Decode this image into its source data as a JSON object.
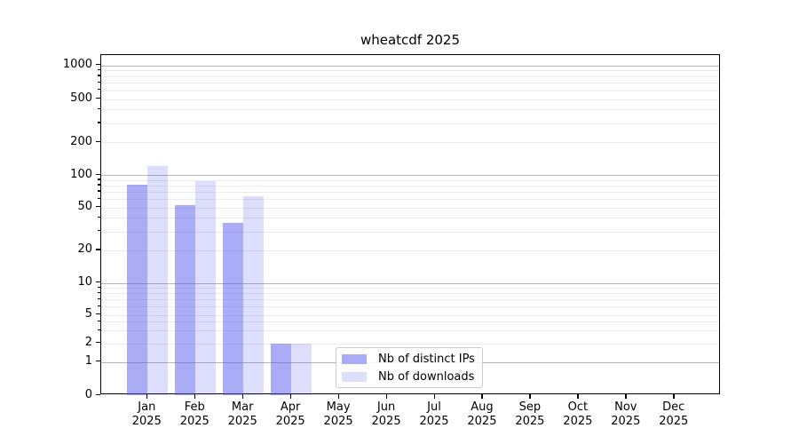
{
  "title": "wheatcdf 2025",
  "chart_data": {
    "type": "bar",
    "title": "wheatcdf 2025",
    "categories": [
      "Jan 2025",
      "Feb 2025",
      "Mar 2025",
      "Apr 2025",
      "May 2025",
      "Jun 2025",
      "Jul 2025",
      "Aug 2025",
      "Sep 2025",
      "Oct 2025",
      "Nov 2025",
      "Dec 2025"
    ],
    "series": [
      {
        "name": "Nb of distinct IPs",
        "color": "rgba(85,90,235,0.5)",
        "values": [
          81,
          53,
          36,
          2,
          0,
          0,
          0,
          0,
          0,
          0,
          0,
          0
        ]
      },
      {
        "name": "Nb of downloads",
        "color": "rgba(85,90,235,0.2)",
        "values": [
          120,
          88,
          63,
          2,
          0,
          0,
          0,
          0,
          0,
          0,
          0,
          0
        ]
      }
    ],
    "yscale": "symlog",
    "yticks": [
      0,
      1,
      2,
      5,
      10,
      20,
      50,
      100,
      200,
      500,
      1000
    ],
    "ylim": [
      0,
      1300
    ],
    "grid": true,
    "legend_position": "lower center-left inside plot"
  },
  "colors": {
    "bar_base": "#555aeb",
    "bar_distinct_ips": "rgba(85,90,235,0.5)",
    "bar_downloads": "rgba(85,90,235,0.2)",
    "grid_major": "#b4b4b4",
    "grid_minor": "#ececec",
    "axis": "#000000",
    "legend_border": "#cccccc"
  }
}
